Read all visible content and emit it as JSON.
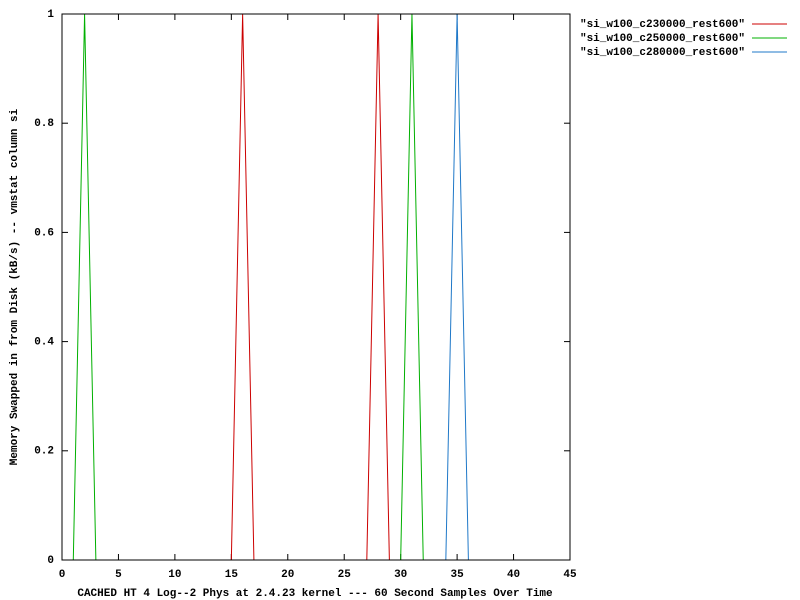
{
  "chart_data": {
    "type": "line",
    "xlabel": "CACHED HT 4 Log--2 Phys at 2.4.23 kernel --- 60 Second Samples Over Time",
    "ylabel": "Memory Swapped in from Disk (kB/s) -- vmstat column si",
    "xlim": [
      0,
      45
    ],
    "xticks": [
      0,
      5,
      10,
      15,
      20,
      25,
      30,
      35,
      40,
      45
    ],
    "ylim": [
      0,
      1
    ],
    "yticks": [
      0,
      0.2,
      0.4,
      0.6,
      0.8,
      1
    ],
    "legend": "top-right-outside",
    "series": [
      {
        "name": "\"si_w100_c230000_rest600\"",
        "color": "#cc0000",
        "x": [
          0,
          15,
          16,
          17,
          27,
          28,
          29,
          44
        ],
        "values": [
          0,
          0,
          1,
          0,
          0,
          1,
          0,
          0
        ]
      },
      {
        "name": "\"si_w100_c250000_rest600\"",
        "color": "#00b000",
        "x": [
          0,
          1,
          2,
          3,
          30,
          31,
          32,
          44
        ],
        "values": [
          0,
          0,
          1,
          0,
          0,
          1,
          0,
          0
        ]
      },
      {
        "name": "\"si_w100_c280000_rest600\"",
        "color": "#1f78c8",
        "x": [
          0,
          34,
          35,
          36,
          44
        ],
        "values": [
          0,
          0,
          1,
          0,
          0
        ]
      }
    ]
  }
}
